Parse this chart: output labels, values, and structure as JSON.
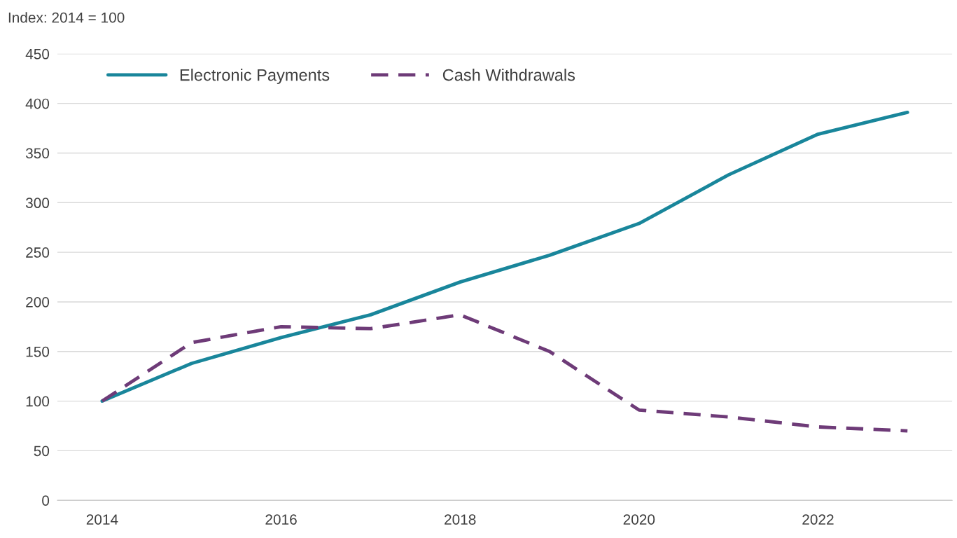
{
  "chart_data": {
    "type": "line",
    "ylabel": "Index: 2014 = 100",
    "x": [
      2014,
      2015,
      2016,
      2017,
      2018,
      2019,
      2020,
      2021,
      2022,
      2023
    ],
    "series": [
      {
        "name": "Electronic Payments",
        "color": "#19869b",
        "line_style": "solid",
        "values": [
          100,
          138,
          164,
          187,
          220,
          247,
          279,
          328,
          369,
          391
        ]
      },
      {
        "name": "Cash Withdrawals",
        "color": "#6e3b78",
        "line_style": "dashed",
        "values": [
          100,
          159,
          175,
          173,
          187,
          150,
          91,
          84,
          74,
          70
        ]
      }
    ],
    "xlim": [
      2013.5,
      2023.5
    ],
    "xticks": [
      2014,
      2016,
      2018,
      2020,
      2022
    ],
    "ylim": [
      0,
      450
    ],
    "yticks": [
      0,
      50,
      100,
      150,
      200,
      250,
      300,
      350,
      400,
      450
    ],
    "grid": "y",
    "legend": "top left",
    "marker": "none"
  }
}
